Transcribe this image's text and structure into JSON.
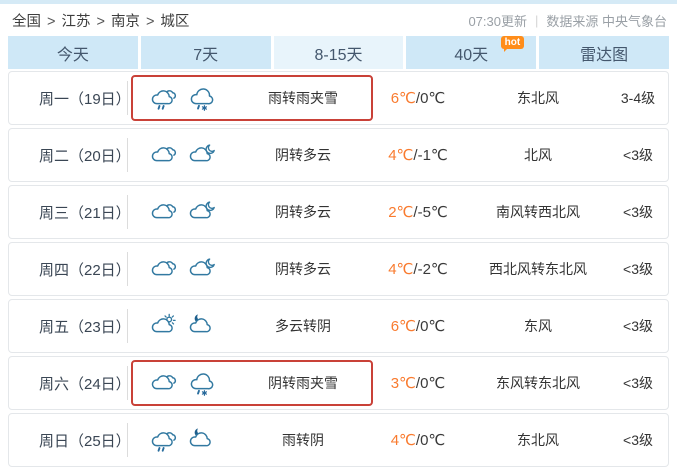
{
  "page": {
    "breadcrumb": {
      "items": [
        "全国",
        "江苏",
        "南京",
        "城区"
      ],
      "separator": ">"
    },
    "meta": {
      "updated": "07:30更新",
      "divider": "|",
      "source": "数据来源 中央气象台"
    }
  },
  "tabs": [
    {
      "label": "今天",
      "active": false
    },
    {
      "label": "7天",
      "active": false
    },
    {
      "label": "8-15天",
      "active": true
    },
    {
      "label": "40天",
      "active": false,
      "badge": "hot"
    },
    {
      "label": "雷达图",
      "active": false
    }
  ],
  "colors": {
    "tab_bg": "#cfe8f7",
    "tab_bg_active": "#e8f4fb",
    "temp_high": "#f97b2f",
    "highlight_border": "#c94138",
    "hot_badge_bg": "#ff8d1a",
    "icon_stroke": "#3279a1",
    "top_strip": "#d5eaf6"
  },
  "forecast": {
    "temp_separator": "/",
    "rows": [
      {
        "day": "周一（19日）",
        "icons": [
          "rain",
          "sleet"
        ],
        "weather": "雨转雨夹雪",
        "high": "6℃",
        "low": "0℃",
        "wind": "东北风",
        "level": "3-4级",
        "highlight": true
      },
      {
        "day": "周二（20日）",
        "icons": [
          "overcast",
          "cloud-moon"
        ],
        "weather": "阴转多云",
        "high": "4℃",
        "low": "-1℃",
        "wind": "北风",
        "level": "<3级",
        "highlight": false
      },
      {
        "day": "周三（21日）",
        "icons": [
          "overcast",
          "cloud-moon"
        ],
        "weather": "阴转多云",
        "high": "2℃",
        "low": "-5℃",
        "wind": "南风转西北风",
        "level": "<3级",
        "highlight": false
      },
      {
        "day": "周四（22日）",
        "icons": [
          "overcast",
          "cloud-moon"
        ],
        "weather": "阴转多云",
        "high": "4℃",
        "low": "-2℃",
        "wind": "西北风转东北风",
        "level": "<3级",
        "highlight": false
      },
      {
        "day": "周五（23日）",
        "icons": [
          "cloud-sun",
          "moon-cloud"
        ],
        "weather": "多云转阴",
        "high": "6℃",
        "low": "0℃",
        "wind": "东风",
        "level": "<3级",
        "highlight": false
      },
      {
        "day": "周六（24日）",
        "icons": [
          "overcast",
          "sleet"
        ],
        "weather": "阴转雨夹雪",
        "high": "3℃",
        "low": "0℃",
        "wind": "东风转东北风",
        "level": "<3级",
        "highlight": true
      },
      {
        "day": "周日（25日）",
        "icons": [
          "rain",
          "moon-cloud"
        ],
        "weather": "雨转阴",
        "high": "4℃",
        "low": "0℃",
        "wind": "东北风",
        "level": "<3级",
        "highlight": false
      }
    ]
  }
}
